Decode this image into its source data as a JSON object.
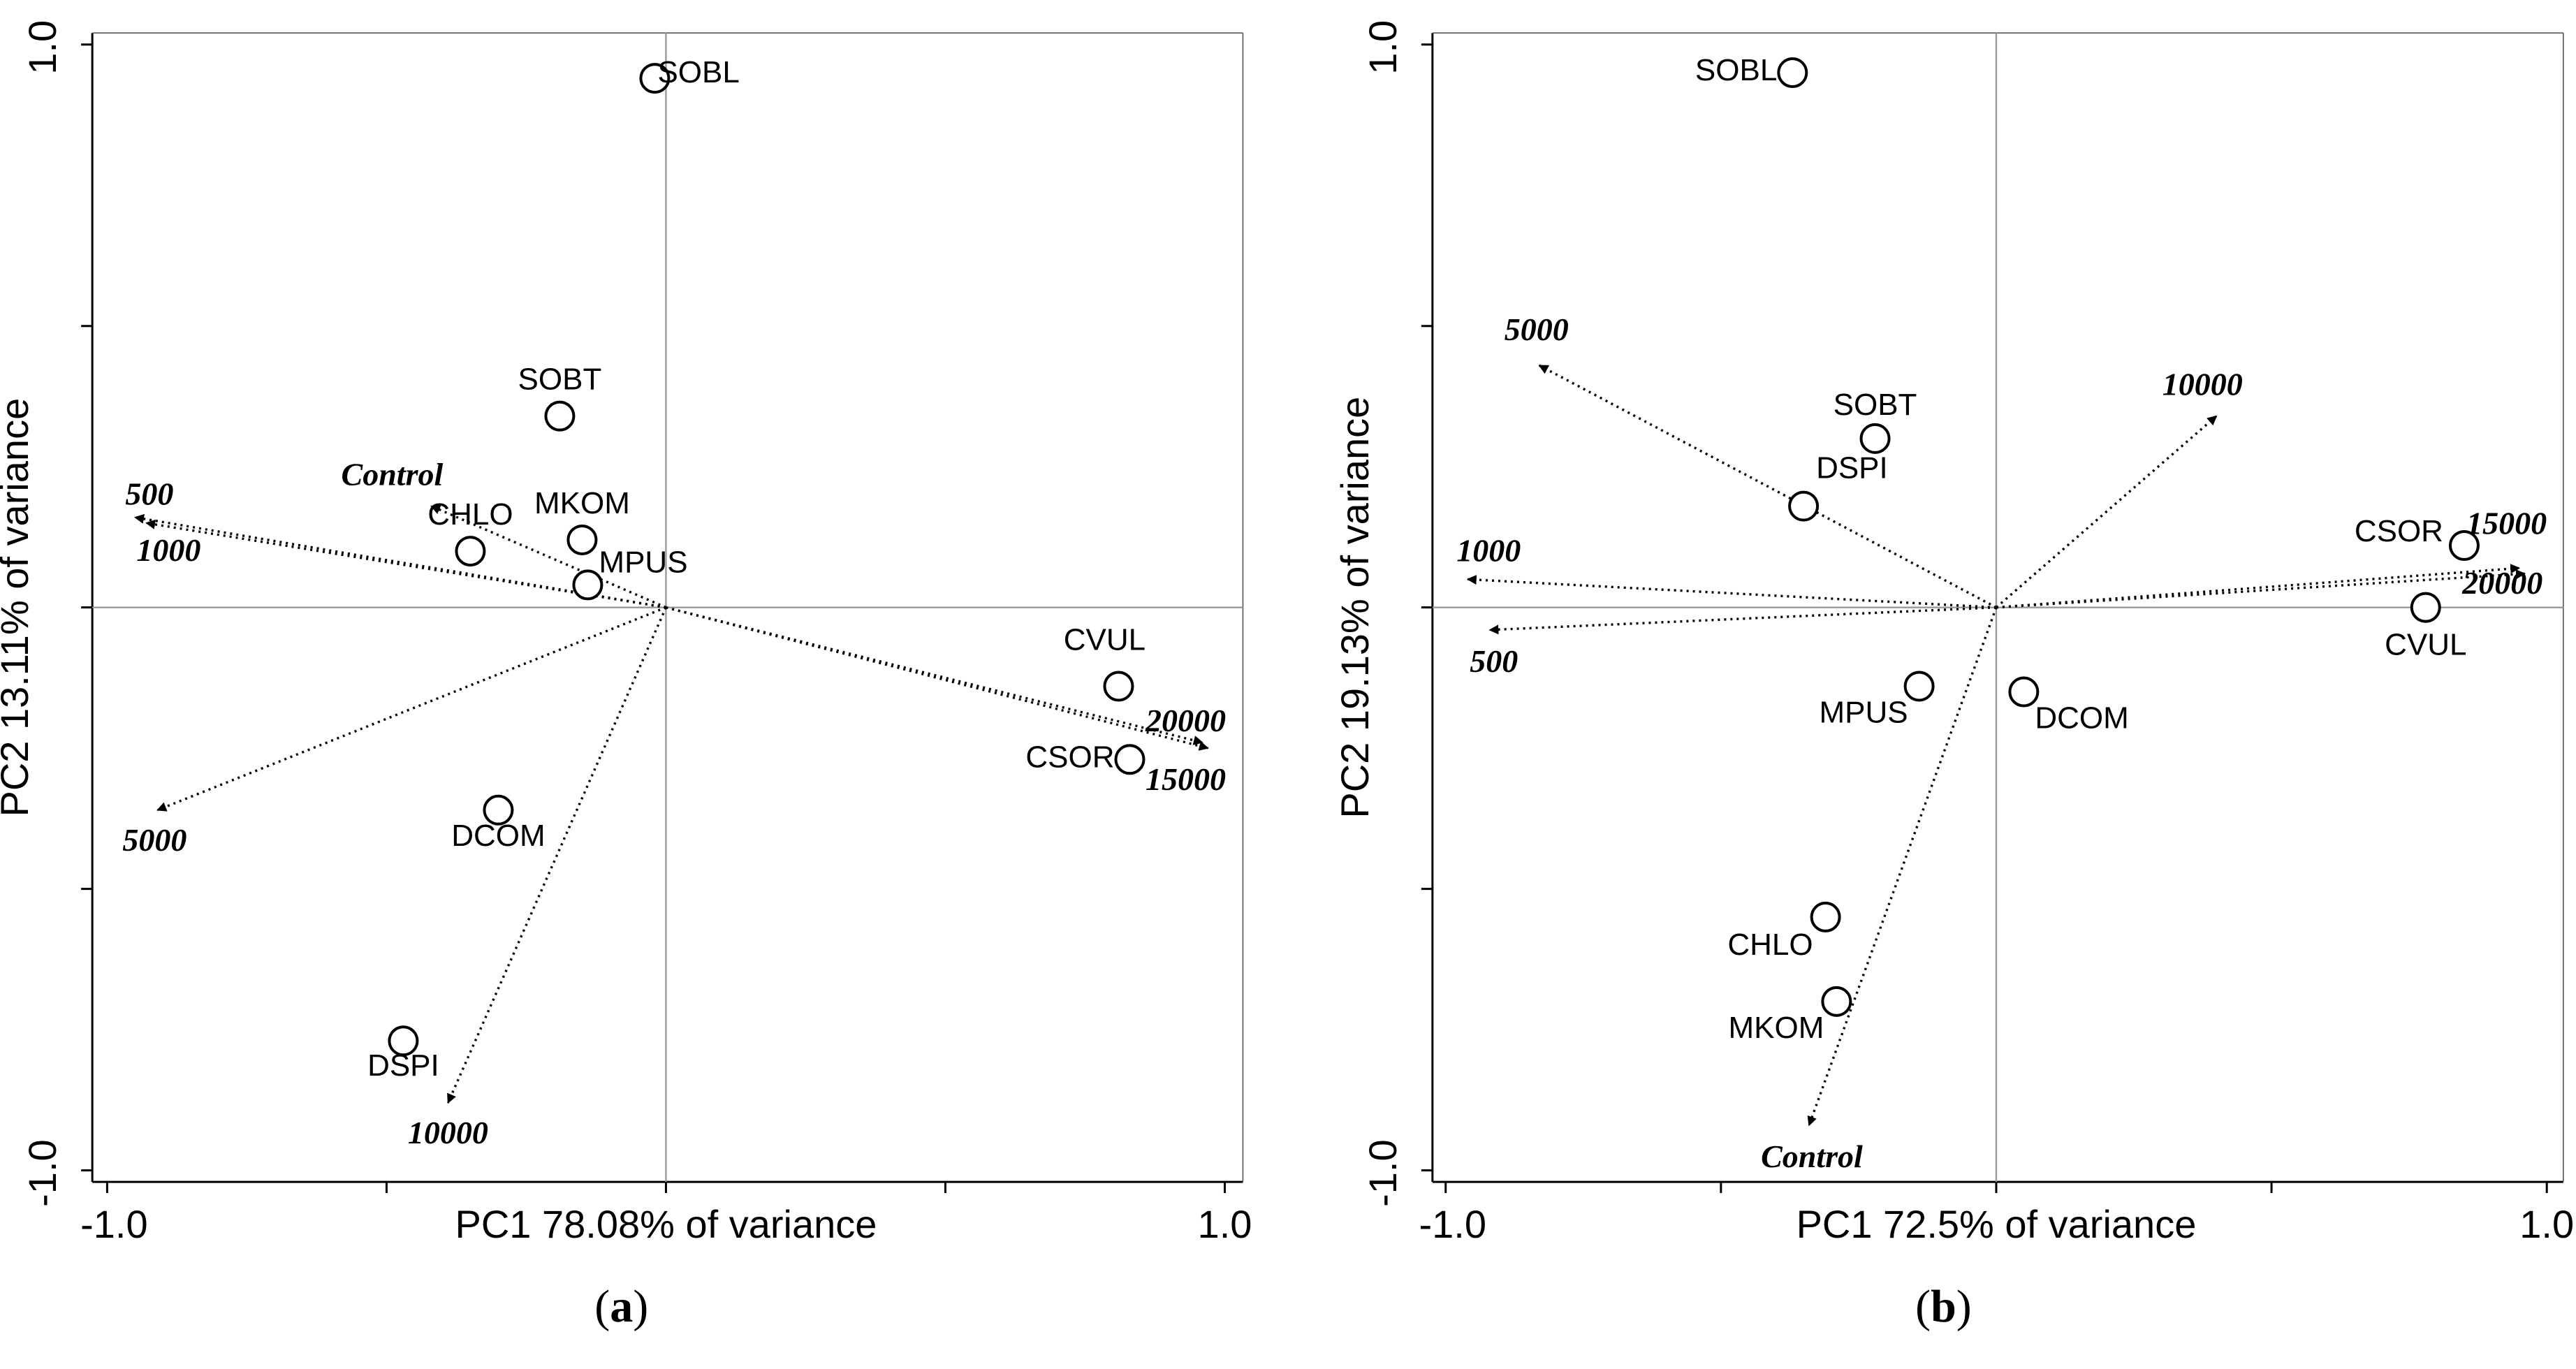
{
  "chart_data": [
    {
      "type": "scatter",
      "subtype": "pca-biplot",
      "panel_label": "a",
      "xlabel": "PC1 78.08% of variance",
      "ylabel": "PC2 13.11% of variance",
      "xlim": [
        -1.0,
        1.0
      ],
      "ylim": [
        -1.0,
        1.0
      ],
      "x_tick_labels": [
        "-1.0",
        "1.0"
      ],
      "y_tick_labels": [
        "-1.0",
        "1.0"
      ],
      "species": [
        {
          "name": "SOBL",
          "x": -0.02,
          "y": 0.94
        },
        {
          "name": "SOBT",
          "x": -0.19,
          "y": 0.34
        },
        {
          "name": "MKOM",
          "x": -0.15,
          "y": 0.12
        },
        {
          "name": "CHLO",
          "x": -0.35,
          "y": 0.1
        },
        {
          "name": "MPUS",
          "x": -0.14,
          "y": 0.04
        },
        {
          "name": "CVUL",
          "x": 0.81,
          "y": -0.14
        },
        {
          "name": "CSOR",
          "x": 0.83,
          "y": -0.27
        },
        {
          "name": "DCOM",
          "x": -0.3,
          "y": -0.36
        },
        {
          "name": "DSPI",
          "x": -0.47,
          "y": -0.77
        }
      ],
      "environmental_vectors": [
        {
          "name": "500",
          "x": -0.95,
          "y": 0.16
        },
        {
          "name": "1000",
          "x": -0.93,
          "y": 0.15
        },
        {
          "name": "Control",
          "x": -0.42,
          "y": 0.18
        },
        {
          "name": "5000",
          "x": -0.91,
          "y": -0.36
        },
        {
          "name": "20000",
          "x": 0.97,
          "y": -0.25
        },
        {
          "name": "15000",
          "x": 0.96,
          "y": -0.24
        },
        {
          "name": "10000",
          "x": -0.39,
          "y": -0.88
        }
      ]
    },
    {
      "type": "scatter",
      "subtype": "pca-biplot",
      "panel_label": "b",
      "xlabel": "PC1 72.5% of variance",
      "ylabel": "PC2 19.13% of variance",
      "xlim": [
        -1.0,
        1.0
      ],
      "ylim": [
        -1.0,
        1.0
      ],
      "x_tick_labels": [
        "-1.0",
        "1.0"
      ],
      "y_tick_labels": [
        "-1.0",
        "1.0"
      ],
      "species": [
        {
          "name": "SOBL",
          "x": -0.37,
          "y": 0.95
        },
        {
          "name": "SOBT",
          "x": -0.22,
          "y": 0.3
        },
        {
          "name": "DSPI",
          "x": -0.35,
          "y": 0.18
        },
        {
          "name": "CSOR",
          "x": 0.85,
          "y": 0.11
        },
        {
          "name": "CVUL",
          "x": 0.78,
          "y": 0.0
        },
        {
          "name": "MPUS",
          "x": -0.14,
          "y": -0.14
        },
        {
          "name": "DCOM",
          "x": 0.05,
          "y": -0.15
        },
        {
          "name": "CHLO",
          "x": -0.31,
          "y": -0.55
        },
        {
          "name": "MKOM",
          "x": -0.29,
          "y": -0.7
        }
      ],
      "environmental_vectors": [
        {
          "name": "5000",
          "x": -0.83,
          "y": 0.43
        },
        {
          "name": "10000",
          "x": 0.4,
          "y": 0.34
        },
        {
          "name": "1000",
          "x": -0.96,
          "y": 0.05
        },
        {
          "name": "500",
          "x": -0.92,
          "y": -0.04
        },
        {
          "name": "15000",
          "x": 0.96,
          "y": 0.06
        },
        {
          "name": "20000",
          "x": 0.95,
          "y": 0.07
        },
        {
          "name": "Control",
          "x": -0.34,
          "y": -0.92
        }
      ]
    }
  ]
}
